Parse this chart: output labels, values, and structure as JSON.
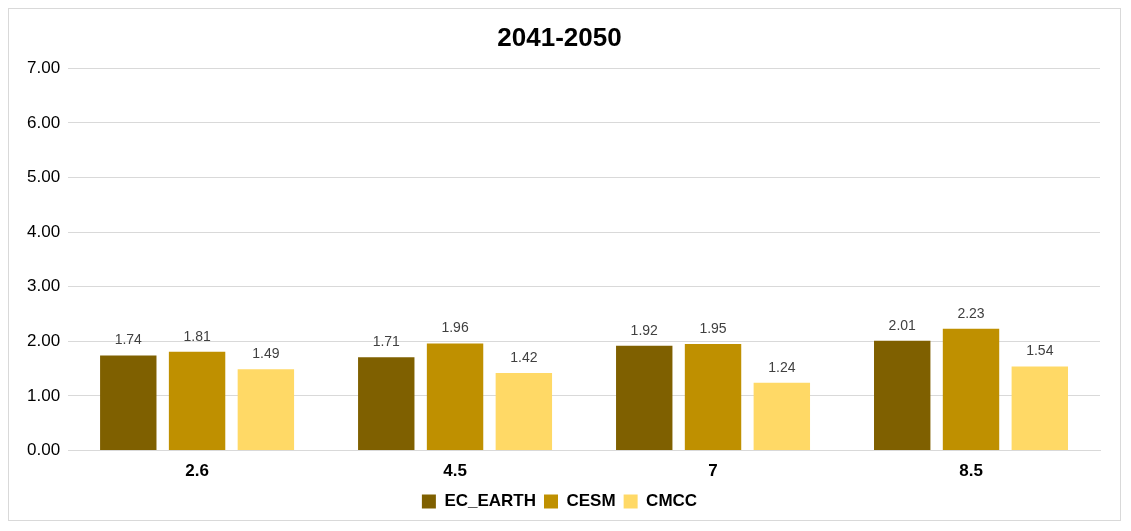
{
  "chart_data": {
    "type": "bar",
    "title": "2041-2050",
    "categories": [
      "2.6",
      "4.5",
      "7",
      "8.5"
    ],
    "series": [
      {
        "name": "EC_EARTH",
        "color": "#7f6000",
        "values": [
          1.74,
          1.71,
          1.92,
          2.01
        ]
      },
      {
        "name": "CESM",
        "color": "#bf9000",
        "values": [
          1.81,
          1.96,
          1.95,
          2.23
        ]
      },
      {
        "name": "CMCC",
        "color": "#ffd966",
        "values": [
          1.49,
          1.42,
          1.24,
          1.54
        ]
      }
    ],
    "ylim": [
      0,
      7
    ],
    "yticks": [
      {
        "value": 0,
        "label": "0.00"
      },
      {
        "value": 1,
        "label": "1.00"
      },
      {
        "value": 2,
        "label": "2.00"
      },
      {
        "value": 3,
        "label": "3.00"
      },
      {
        "value": 4,
        "label": "4.00"
      },
      {
        "value": 5,
        "label": "5.00"
      },
      {
        "value": 6,
        "label": "6.00"
      },
      {
        "value": 7,
        "label": "7.00"
      }
    ],
    "grid": "y",
    "legend": "bottom",
    "data_labels": true
  }
}
